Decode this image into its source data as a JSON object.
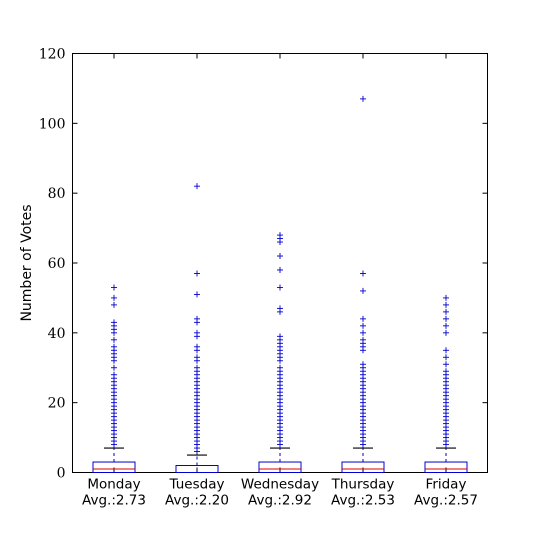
{
  "chart_data": {
    "type": "box",
    "ylabel": "Number of Votes",
    "ylim": [
      0,
      120
    ],
    "yticks": [
      0,
      20,
      40,
      60,
      80,
      100,
      120
    ],
    "grid": false,
    "categories": [
      {
        "day": "Monday",
        "avg": "Avg.:2.73"
      },
      {
        "day": "Tuesday",
        "avg": "Avg.:2.20"
      },
      {
        "day": "Wednesday",
        "avg": "Avg.:2.92"
      },
      {
        "day": "Thursday",
        "avg": "Avg.:2.53"
      },
      {
        "day": "Friday",
        "avg": "Avg.:2.57"
      }
    ],
    "boxes": [
      {
        "q1": 0,
        "median": 1,
        "q3": 3,
        "whisker_low": 0,
        "whisker_high": 7,
        "fliers": [
          8,
          9,
          10,
          11,
          12,
          13,
          14,
          15,
          16,
          17,
          18,
          19,
          20,
          21,
          22,
          23,
          24,
          25,
          26,
          27,
          28,
          30,
          32,
          33,
          34,
          35,
          36,
          38,
          40,
          41,
          42,
          43,
          48,
          50,
          53
        ]
      },
      {
        "q1": 0,
        "median": 0,
        "q3": 2,
        "whisker_low": 0,
        "whisker_high": 5,
        "fliers": [
          6,
          7,
          8,
          9,
          10,
          11,
          12,
          13,
          14,
          15,
          16,
          17,
          18,
          19,
          20,
          21,
          22,
          23,
          24,
          25,
          26,
          27,
          28,
          29,
          30,
          32,
          33,
          35,
          36,
          39,
          40,
          43,
          44,
          51,
          57,
          82
        ]
      },
      {
        "q1": 0,
        "median": 1,
        "q3": 3,
        "whisker_low": 0,
        "whisker_high": 7,
        "fliers": [
          8,
          9,
          10,
          11,
          12,
          13,
          14,
          15,
          16,
          17,
          18,
          19,
          20,
          21,
          22,
          23,
          24,
          25,
          26,
          27,
          28,
          29,
          30,
          32,
          33,
          34,
          35,
          36,
          37,
          38,
          39,
          46,
          47,
          53,
          58,
          62,
          66,
          67,
          68
        ]
      },
      {
        "q1": 0,
        "median": 1,
        "q3": 3,
        "whisker_low": 0,
        "whisker_high": 7,
        "fliers": [
          8,
          9,
          10,
          11,
          12,
          13,
          14,
          15,
          16,
          17,
          18,
          19,
          20,
          21,
          22,
          23,
          24,
          25,
          26,
          27,
          28,
          29,
          30,
          31,
          35,
          36,
          37,
          38,
          40,
          42,
          44,
          52,
          57,
          107
        ]
      },
      {
        "q1": 0,
        "median": 1,
        "q3": 3,
        "whisker_low": 0,
        "whisker_high": 7,
        "fliers": [
          8,
          9,
          10,
          11,
          12,
          13,
          14,
          15,
          16,
          17,
          18,
          19,
          20,
          21,
          22,
          23,
          24,
          25,
          26,
          27,
          28,
          29,
          31,
          33,
          35,
          40,
          42,
          44,
          46,
          48,
          50
        ]
      }
    ],
    "colors": {
      "box": "#0000cc",
      "median": "#dd0000",
      "cap": "#000000",
      "flier": "#0000cc"
    }
  }
}
